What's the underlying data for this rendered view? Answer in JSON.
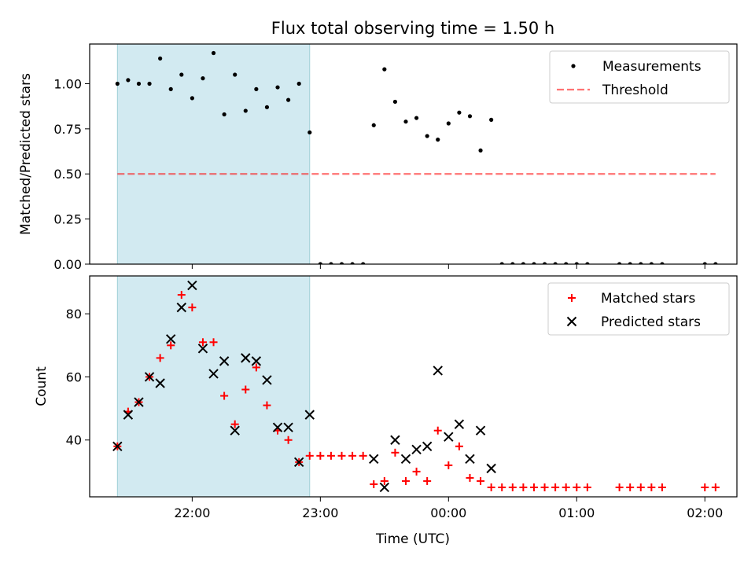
{
  "title": "Flux total observing time = 1.50 h",
  "xlabel": "Time (UTC)",
  "colors": {
    "shade": "#add8e6",
    "threshold": "#ff0000",
    "matched": "#ff0000",
    "predicted": "#000000",
    "measurement": "#000000"
  },
  "chart_data": [
    {
      "type": "scatter",
      "panel": "top",
      "ylabel": "Matched/Predicted stars",
      "xlim": [
        "21:12",
        "02:15"
      ],
      "ylim": [
        0,
        1.22
      ],
      "yticks": [
        0.0,
        0.25,
        0.5,
        0.75,
        1.0
      ],
      "ytick_labels": [
        "0.00",
        "0.25",
        "0.50",
        "0.75",
        "1.00"
      ],
      "shaded_interval": [
        "21:25",
        "22:55"
      ],
      "legend": {
        "placement": "top-right",
        "entries": [
          "Measurements",
          "Threshold"
        ]
      },
      "threshold": {
        "name": "Threshold",
        "value": 0.5,
        "x": [
          "21:25",
          "02:05"
        ]
      },
      "series": [
        {
          "name": "Measurements",
          "x": [
            "21:25",
            "21:30",
            "21:35",
            "21:40",
            "21:45",
            "21:50",
            "21:55",
            "22:00",
            "22:05",
            "22:10",
            "22:15",
            "22:20",
            "22:25",
            "22:30",
            "22:35",
            "22:40",
            "22:45",
            "22:50",
            "22:55",
            "23:00",
            "23:05",
            "23:10",
            "23:15",
            "23:20",
            "23:25",
            "23:30",
            "23:35",
            "23:40",
            "23:45",
            "23:50",
            "23:55",
            "00:00",
            "00:05",
            "00:10",
            "00:15",
            "00:20",
            "00:25",
            "00:30",
            "00:35",
            "00:40",
            "00:45",
            "00:50",
            "00:55",
            "01:00",
            "01:05",
            "01:20",
            "01:25",
            "01:30",
            "01:35",
            "01:40",
            "02:00",
            "02:05"
          ],
          "y": [
            1.0,
            1.02,
            1.0,
            1.0,
            1.14,
            0.97,
            1.05,
            0.92,
            1.03,
            1.17,
            0.83,
            1.05,
            0.85,
            0.97,
            0.87,
            0.98,
            0.91,
            1.0,
            0.73,
            0.0,
            0.0,
            0.0,
            0.0,
            0.0,
            0.77,
            1.08,
            0.9,
            0.79,
            0.81,
            0.71,
            0.69,
            0.78,
            0.84,
            0.82,
            0.63,
            0.8,
            0.0,
            0.0,
            0.0,
            0.0,
            0.0,
            0.0,
            0.0,
            0.0,
            0.0,
            0.0,
            0.0,
            0.0,
            0.0,
            0.0,
            0.0,
            0.0
          ]
        }
      ]
    },
    {
      "type": "scatter",
      "panel": "bottom",
      "ylabel": "Count",
      "xlim": [
        "21:12",
        "02:15"
      ],
      "ylim": [
        22,
        92
      ],
      "yticks": [
        40,
        60,
        80
      ],
      "ytick_labels": [
        "40",
        "60",
        "80"
      ],
      "xticks": [
        "22:00",
        "23:00",
        "00:00",
        "01:00",
        "02:00"
      ],
      "xtick_labels": [
        "22:00",
        "23:00",
        "00:00",
        "01:00",
        "02:00"
      ],
      "shaded_interval": [
        "21:25",
        "22:55"
      ],
      "legend": {
        "placement": "top-right",
        "entries": [
          "Matched stars",
          "Predicted stars"
        ]
      },
      "series": [
        {
          "name": "Matched stars",
          "marker": "+",
          "x": [
            "21:25",
            "21:30",
            "21:35",
            "21:40",
            "21:45",
            "21:50",
            "21:55",
            "22:00",
            "22:05",
            "22:10",
            "22:15",
            "22:20",
            "22:25",
            "22:30",
            "22:35",
            "22:40",
            "22:45",
            "22:50",
            "22:55",
            "23:00",
            "23:05",
            "23:10",
            "23:15",
            "23:20",
            "23:25",
            "23:30",
            "23:35",
            "23:40",
            "23:45",
            "23:50",
            "23:55",
            "00:00",
            "00:05",
            "00:10",
            "00:15",
            "00:20",
            "00:25",
            "00:30",
            "00:35",
            "00:40",
            "00:45",
            "00:50",
            "00:55",
            "01:00",
            "01:05",
            "01:20",
            "01:25",
            "01:30",
            "01:35",
            "01:40",
            "02:00",
            "02:05"
          ],
          "y": [
            38,
            49,
            52,
            60,
            66,
            70,
            86,
            82,
            71,
            71,
            54,
            45,
            56,
            63,
            51,
            43,
            40,
            33,
            35,
            35,
            35,
            35,
            35,
            35,
            26,
            27,
            36,
            27,
            30,
            27,
            43,
            32,
            38,
            28,
            27,
            25,
            25,
            25,
            25,
            25,
            25,
            25,
            25,
            25,
            25,
            25,
            25,
            25,
            25,
            25,
            25,
            25
          ]
        },
        {
          "name": "Predicted stars",
          "marker": "x",
          "x": [
            "21:25",
            "21:30",
            "21:35",
            "21:40",
            "21:45",
            "21:50",
            "21:55",
            "22:00",
            "22:05",
            "22:10",
            "22:15",
            "22:20",
            "22:25",
            "22:30",
            "22:35",
            "22:40",
            "22:45",
            "22:50",
            "22:55",
            "23:25",
            "23:30",
            "23:35",
            "23:40",
            "23:45",
            "23:50",
            "23:55",
            "00:00",
            "00:05",
            "00:10",
            "00:15",
            "00:20"
          ],
          "y": [
            38,
            48,
            52,
            60,
            58,
            72,
            82,
            89,
            69,
            61,
            65,
            43,
            66,
            65,
            59,
            44,
            44,
            33,
            48,
            34,
            25,
            40,
            34,
            37,
            38,
            62,
            41,
            45,
            34,
            43,
            31
          ]
        }
      ]
    }
  ]
}
